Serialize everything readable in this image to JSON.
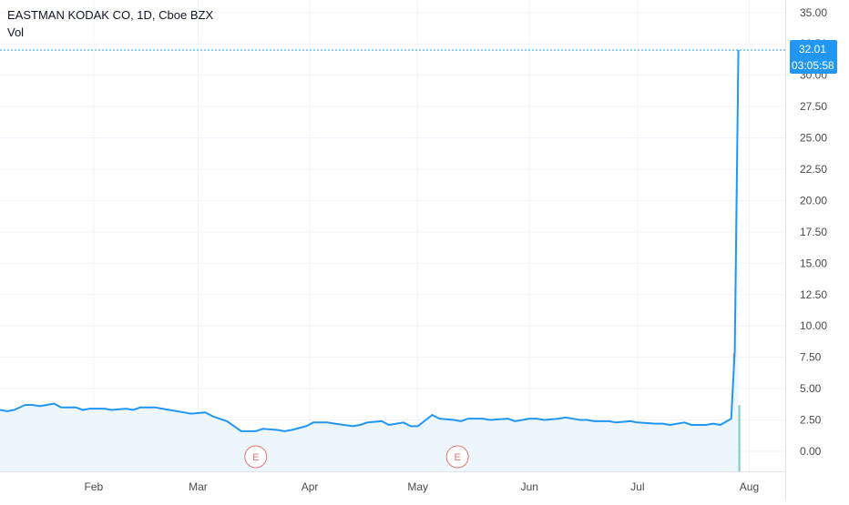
{
  "header": {
    "symbol_line": "EASTMAN KODAK CO, 1D, Cboe BZX",
    "volume_label": "Vol"
  },
  "price_tag": {
    "price": "32.01",
    "countdown": "03:05:58"
  },
  "colors": {
    "line": "#2196f3",
    "area_fill": "#eef6fd",
    "grid": "#f0f3fa",
    "axis_text": "#4a4a4a",
    "price_tag_bg": "#2196f3",
    "earnings_marker": "#e57373",
    "volume_up": "#26a69a",
    "volume_down": "#ef5350"
  },
  "earnings_markers": [
    {
      "label": "E",
      "date": "2020-03-17"
    },
    {
      "label": "E",
      "date": "2020-05-12"
    }
  ],
  "chart_data": {
    "type": "area",
    "title": "EASTMAN KODAK CO, 1D, Cboe BZX",
    "x_ticks": [
      {
        "label": "Feb",
        "date": "2020-02-01"
      },
      {
        "label": "Mar",
        "date": "2020-03-01"
      },
      {
        "label": "Apr",
        "date": "2020-04-01"
      },
      {
        "label": "May",
        "date": "2020-05-01"
      },
      {
        "label": "Jun",
        "date": "2020-06-01"
      },
      {
        "label": "Jul",
        "date": "2020-07-01"
      },
      {
        "label": "Aug",
        "date": "2020-08-01"
      }
    ],
    "y_ticks": [
      "35.00",
      "32.50",
      "30.00",
      "27.50",
      "25.00",
      "22.50",
      "20.00",
      "17.50",
      "15.00",
      "12.50",
      "10.00",
      "7.50",
      "5.00",
      "2.50",
      "0.00"
    ],
    "ylim": [
      -1.6,
      36.0
    ],
    "xlim": [
      "2020-01-06",
      "2020-08-11"
    ],
    "series": [
      {
        "x": [
          "2020-01-06",
          "2020-01-08",
          "2020-01-10",
          "2020-01-13",
          "2020-01-15",
          "2020-01-17",
          "2020-01-21",
          "2020-01-23",
          "2020-01-27",
          "2020-01-29",
          "2020-01-31",
          "2020-02-04",
          "2020-02-06",
          "2020-02-10",
          "2020-02-12",
          "2020-02-14",
          "2020-02-18",
          "2020-02-20",
          "2020-02-24",
          "2020-02-26",
          "2020-02-28",
          "2020-03-03",
          "2020-03-05",
          "2020-03-09",
          "2020-03-11",
          "2020-03-13",
          "2020-03-17",
          "2020-03-19",
          "2020-03-23",
          "2020-03-25",
          "2020-03-27",
          "2020-03-31",
          "2020-04-02",
          "2020-04-06",
          "2020-04-08",
          "2020-04-13",
          "2020-04-15",
          "2020-04-17",
          "2020-04-21",
          "2020-04-23",
          "2020-04-27",
          "2020-04-29",
          "2020-05-01",
          "2020-05-05",
          "2020-05-07",
          "2020-05-11",
          "2020-05-13",
          "2020-05-15",
          "2020-05-19",
          "2020-05-21",
          "2020-05-26",
          "2020-05-28",
          "2020-06-01",
          "2020-06-03",
          "2020-06-05",
          "2020-06-09",
          "2020-06-11",
          "2020-06-15",
          "2020-06-17",
          "2020-06-19",
          "2020-06-23",
          "2020-06-25",
          "2020-06-29",
          "2020-07-01",
          "2020-07-06",
          "2020-07-08",
          "2020-07-10",
          "2020-07-14",
          "2020-07-16",
          "2020-07-20",
          "2020-07-22",
          "2020-07-24",
          "2020-07-27",
          "2020-07-28",
          "2020-07-29"
        ],
        "y": [
          3.3,
          3.2,
          3.3,
          3.7,
          3.7,
          3.6,
          3.8,
          3.5,
          3.5,
          3.3,
          3.4,
          3.4,
          3.3,
          3.4,
          3.3,
          3.5,
          3.5,
          3.4,
          3.2,
          3.1,
          3.0,
          3.1,
          2.8,
          2.4,
          2.0,
          1.6,
          1.6,
          1.8,
          1.7,
          1.6,
          1.7,
          2.0,
          2.3,
          2.3,
          2.2,
          2.0,
          2.1,
          2.3,
          2.4,
          2.1,
          2.3,
          2.0,
          2.0,
          2.9,
          2.6,
          2.5,
          2.4,
          2.6,
          2.6,
          2.5,
          2.6,
          2.4,
          2.6,
          2.6,
          2.5,
          2.6,
          2.7,
          2.5,
          2.5,
          2.4,
          2.4,
          2.3,
          2.4,
          2.3,
          2.2,
          2.2,
          2.1,
          2.3,
          2.1,
          2.1,
          2.2,
          2.1,
          2.6,
          8.0,
          32.01
        ]
      }
    ],
    "last_price": 32.01,
    "volume_bars": [
      {
        "date": "2020-07-28",
        "direction": "down",
        "relative_height": 1.0
      },
      {
        "date": "2020-07-29",
        "direction": "up",
        "relative_height": 0.56
      }
    ],
    "grid": true
  }
}
